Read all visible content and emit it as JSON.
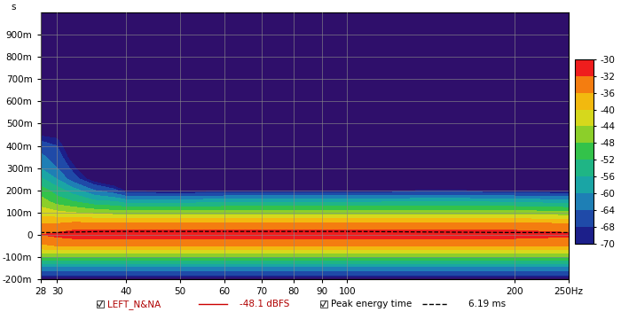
{
  "chart_data": {
    "type": "contour",
    "y_unit_label": "s",
    "x": [
      28,
      30,
      32,
      35,
      38,
      40,
      50,
      60,
      80,
      100,
      150,
      200,
      250
    ],
    "y": [
      -0.2,
      -0.15,
      -0.1,
      -0.05,
      0,
      0.05,
      0.1,
      0.15,
      0.2,
      0.25,
      0.3,
      0.35,
      0.4,
      0.5,
      1.0
    ],
    "cells": [
      [
        -72,
        -62,
        -48,
        -37,
        -32,
        -36,
        -42,
        -46,
        -50,
        -55,
        -60,
        -63,
        -66,
        -75,
        -80
      ],
      [
        -72,
        -62,
        -48,
        -36,
        -31,
        -36,
        -43,
        -50,
        -54,
        -60,
        -64,
        -66,
        -68,
        -74,
        -80
      ],
      [
        -72,
        -62,
        -48,
        -36,
        -30,
        -35,
        -44,
        -52,
        -58,
        -66,
        -69,
        -72,
        -74,
        -78,
        -80
      ],
      [
        -72,
        -62,
        -48,
        -36,
        -30,
        -35,
        -45,
        -55,
        -64,
        -72,
        -76,
        -78,
        -80,
        -80,
        -80
      ],
      [
        -72,
        -62,
        -48,
        -36,
        -30,
        -35,
        -46,
        -56,
        -67,
        -75,
        -78,
        -80,
        -80,
        -80,
        -80
      ],
      [
        -72,
        -62,
        -48,
        -36,
        -30,
        -35,
        -46,
        -58,
        -71,
        -76,
        -78,
        -80,
        -80,
        -80,
        -80
      ],
      [
        -72,
        -62,
        -48,
        -36,
        -30,
        -35,
        -46,
        -58,
        -72,
        -76,
        -78,
        -80,
        -80,
        -80,
        -80
      ],
      [
        -72,
        -62,
        -48,
        -36,
        -30,
        -35,
        -46,
        -57,
        -71,
        -76,
        -78,
        -80,
        -80,
        -80,
        -80
      ],
      [
        -72,
        -62,
        -48,
        -36,
        -30,
        -35,
        -46,
        -57,
        -71,
        -76,
        -78,
        -80,
        -80,
        -80,
        -80
      ],
      [
        -72,
        -62,
        -48,
        -36,
        -30,
        -35,
        -46,
        -57,
        -71,
        -76,
        -78,
        -80,
        -80,
        -80,
        -80
      ],
      [
        -72,
        -62,
        -48,
        -36,
        -30,
        -35,
        -46,
        -56,
        -70,
        -76,
        -78,
        -80,
        -80,
        -80,
        -80
      ],
      [
        -72,
        -62,
        -48,
        -36,
        -30,
        -35,
        -46,
        -57,
        -71,
        -76,
        -78,
        -80,
        -80,
        -80,
        -80
      ],
      [
        -72,
        -62,
        -48,
        -36,
        -31,
        -36,
        -47,
        -58,
        -72,
        -76,
        -78,
        -80,
        -80,
        -80,
        -80
      ]
    ],
    "peak_energy_time": {
      "name": "Peak energy time",
      "color": "#000000",
      "line_style": "dashed",
      "values": [
        0.01,
        0.01,
        0.012,
        0.014,
        0.015,
        0.015,
        0.015,
        0.015,
        0.015,
        0.015,
        0.012,
        0.01,
        0.01
      ]
    },
    "trace": {
      "name": "LEFT_N&NA",
      "color": "#b00000",
      "level": "-48.1 dBFS"
    },
    "peak_energy_value": "6.19 ms",
    "xlim": [
      28,
      250
    ],
    "xticks": [
      28,
      30,
      40,
      50,
      60,
      70,
      80,
      90,
      100,
      200,
      {
        "value": 250,
        "label": "250Hz"
      }
    ],
    "ylim": [
      -0.2,
      1.0
    ],
    "yticks": [
      {
        "value": -0.2,
        "label": "-200m"
      },
      {
        "value": -0.1,
        "label": "-100m"
      },
      0,
      {
        "value": 0.1,
        "label": "100m"
      },
      {
        "value": 0.2,
        "label": "200m"
      },
      {
        "value": 0.3,
        "label": "300m"
      },
      {
        "value": 0.4,
        "label": "400m"
      },
      {
        "value": 0.5,
        "label": "500m"
      },
      {
        "value": 0.6,
        "label": "600m"
      },
      {
        "value": 0.7,
        "label": "700m"
      },
      {
        "value": 0.8,
        "label": "800m"
      },
      {
        "value": 0.9,
        "label": "900m"
      }
    ],
    "log": "x",
    "grid": true,
    "colorbar": {
      "levels": [
        -70,
        -68,
        -64,
        -60,
        -56,
        -52,
        -48,
        -44,
        -40,
        -36,
        -32,
        -30
      ],
      "colors": [
        "#1c1f8a",
        "#1f4aa8",
        "#1e7fb5",
        "#1aa5a5",
        "#1fb585",
        "#33c24a",
        "#8ccf2a",
        "#d6d81c",
        "#f2b90f",
        "#f47d10",
        "#ef1d1d"
      ],
      "range": [
        -70,
        -30
      ],
      "ticks": [
        -70,
        -68,
        -64,
        -60,
        -56,
        -52,
        -48,
        -44,
        -40,
        -36,
        -32,
        -30
      ]
    }
  }
}
